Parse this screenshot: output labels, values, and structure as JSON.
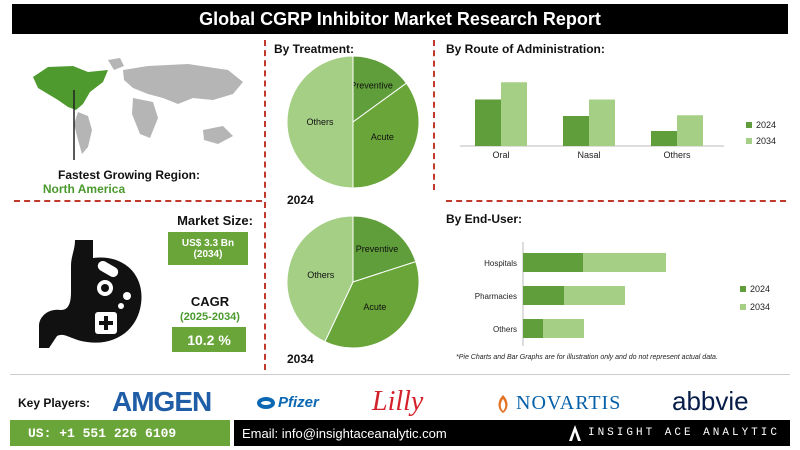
{
  "title": "Global CGRP Inhibitor Market Research Report",
  "region": {
    "label": "Fastest Growing Region:",
    "value": "North America"
  },
  "market_size": {
    "label": "Market Size:",
    "value_line1": "US$ 3.3 Bn",
    "value_line2": "(2034)"
  },
  "cagr": {
    "label": "CAGR",
    "period": "(2025-2034)",
    "value": "10.2 %"
  },
  "sections": {
    "treatment": "By Treatment:",
    "route": "By Route of Administration:",
    "end_user": "By End-User:"
  },
  "disclaimer": "*Pie Charts and Bar Graphs are for illustration only and do not represent actual data.",
  "key_players": {
    "label": "Key Players:",
    "logos": [
      "AMGEN",
      "Pfizer",
      "Lilly",
      "NOVARTIS",
      "abbvie"
    ]
  },
  "contact": {
    "phone": "US: +1 551 226 6109",
    "email": "Email: info@insightaceanalytic.com",
    "brand": "INSIGHT ACE ANALYTIC"
  },
  "colors": {
    "dark_green": "#5f9e3a",
    "mid_green": "#6aa53a",
    "light_green": "#a4cf85",
    "red_accent": "#c0392b"
  },
  "chart_data": [
    {
      "type": "pie",
      "label": "2024",
      "slices": [
        {
          "name": "Preventive",
          "value": 15
        },
        {
          "name": "Acute",
          "value": 35
        },
        {
          "name": "Others",
          "value": 50
        }
      ]
    },
    {
      "type": "pie",
      "label": "2034",
      "slices": [
        {
          "name": "Preventive",
          "value": 20
        },
        {
          "name": "Acute",
          "value": 37
        },
        {
          "name": "Others",
          "value": 43
        }
      ]
    },
    {
      "type": "bar",
      "orientation": "vertical",
      "categories": [
        "Oral",
        "Nasal",
        "Others"
      ],
      "series": [
        {
          "name": "2024",
          "values": [
            6.2,
            4.0,
            2.0
          ]
        },
        {
          "name": "2034",
          "values": [
            8.5,
            6.2,
            4.1
          ]
        }
      ],
      "ylim": [
        0,
        10
      ],
      "legend": "right"
    },
    {
      "type": "bar",
      "orientation": "horizontal",
      "categories": [
        "Hospitals",
        "Pharmacies",
        "Others"
      ],
      "series": [
        {
          "name": "2024",
          "values": [
            60,
            41,
            20
          ]
        },
        {
          "name": "2034",
          "values": [
            83,
            61,
            41
          ]
        }
      ],
      "stacked": true,
      "xlim": [
        0,
        160
      ],
      "legend": "right"
    }
  ]
}
